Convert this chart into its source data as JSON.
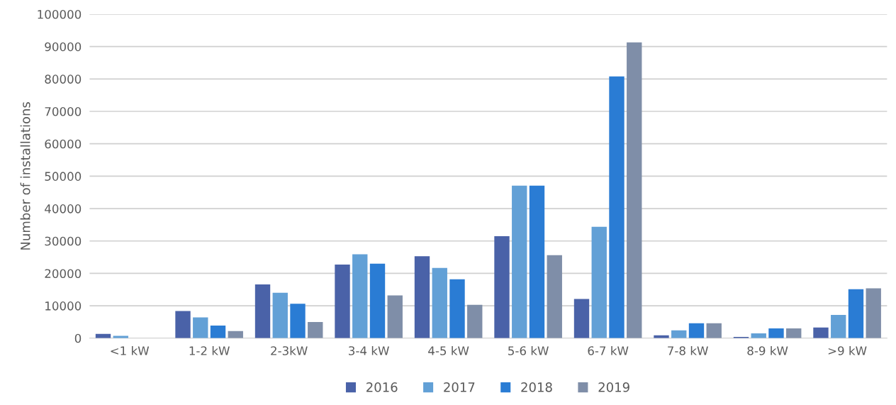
{
  "chart_data": {
    "type": "bar",
    "ylabel": "Number of installations",
    "categories": [
      "<1 kW",
      "1-2 kW",
      "2-3kW",
      "3-4 kW",
      "4-5 kW",
      "5-6 kW",
      "6-7 kW",
      "7-8 kW",
      "8-9 kW",
      ">9 kW"
    ],
    "series": [
      {
        "name": "2016",
        "color": "#4a62a8",
        "values": [
          1300,
          8400,
          16600,
          22700,
          25300,
          31500,
          12100,
          900,
          400,
          3300
        ]
      },
      {
        "name": "2017",
        "color": "#62a0d6",
        "values": [
          700,
          6400,
          14000,
          25900,
          21700,
          47100,
          34400,
          2400,
          1500,
          7200
        ]
      },
      {
        "name": "2018",
        "color": "#2a7cd4",
        "values": [
          0,
          3900,
          10600,
          23000,
          18200,
          47100,
          80800,
          4600,
          3000,
          15100
        ]
      },
      {
        "name": "2019",
        "color": "#7f8ea8",
        "values": [
          0,
          2200,
          5000,
          13200,
          10300,
          25600,
          91300,
          4600,
          3000,
          15400
        ]
      }
    ],
    "ylim": [
      0,
      100000
    ],
    "yticks": [
      0,
      10000,
      20000,
      30000,
      40000,
      50000,
      60000,
      70000,
      80000,
      90000,
      100000
    ],
    "grid": "y",
    "legend": "bottom"
  }
}
